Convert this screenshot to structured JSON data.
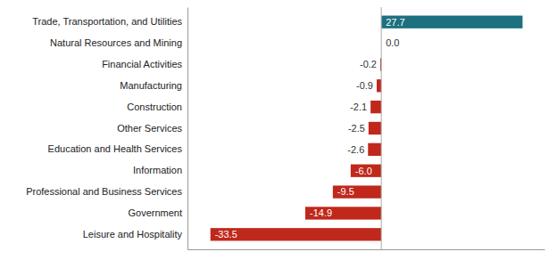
{
  "chart_data": {
    "type": "bar",
    "orientation": "horizontal",
    "categories": [
      "Trade, Transportation, and Utilities",
      "Natural Resources and Mining",
      "Financial Activities",
      "Manufacturing",
      "Construction",
      "Other Services",
      "Education and Health Services",
      "Information",
      "Professional and Business Services",
      "Government",
      "Leisure and Hospitality"
    ],
    "values": [
      27.7,
      0.0,
      -0.2,
      -0.9,
      -2.1,
      -2.5,
      -2.6,
      -6.0,
      -9.5,
      -14.9,
      -33.5
    ],
    "value_labels": [
      "27.7",
      "0.0",
      "-0.2",
      "-0.9",
      "-2.1",
      "-2.5",
      "-2.6",
      "-6.0",
      "-9.5",
      "-14.9",
      "-33.5"
    ],
    "colors": [
      "#1c7080",
      "#aaaaaa",
      "#c0281c",
      "#c0281c",
      "#c0281c",
      "#c0281c",
      "#c0281c",
      "#c0281c",
      "#c0281c",
      "#c0281c",
      "#c0281c"
    ],
    "xlim": [
      -38,
      32
    ],
    "data_labels": true,
    "tick_labels": "y",
    "grid": false
  }
}
